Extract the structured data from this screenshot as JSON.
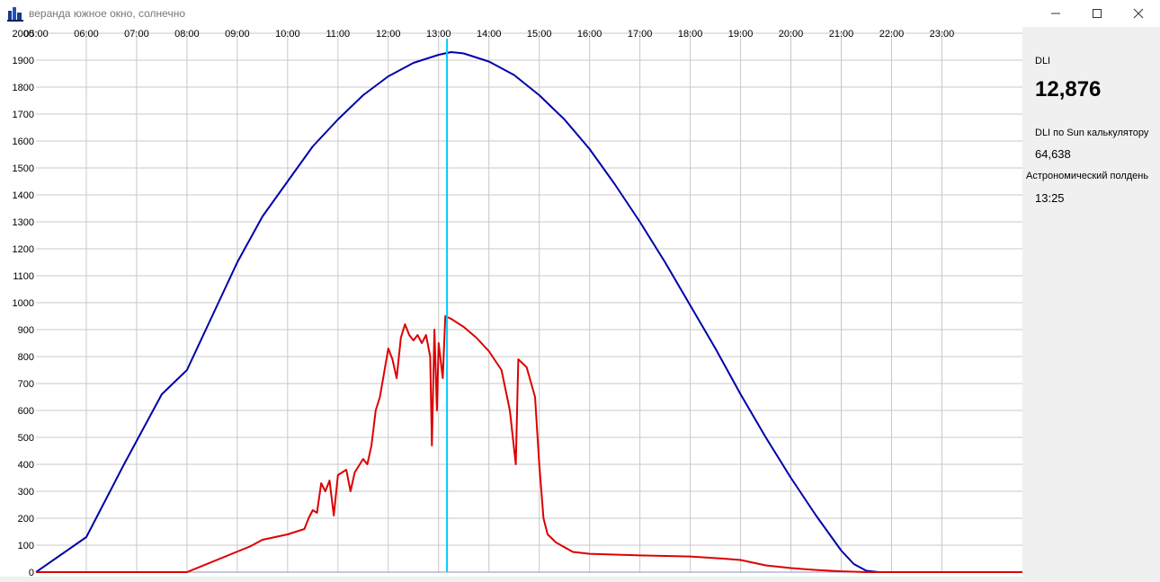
{
  "window": {
    "title": "веранда южное окно, солнечно",
    "icon": "app-icon"
  },
  "side_panel": {
    "dli_label": "DLI",
    "dli_value": "12,876",
    "calc_label": "DLI по Sun калькулятору",
    "calc_value": "64,638",
    "noon_label": "Астрономический полдень",
    "noon_value": "13:25"
  },
  "colors": {
    "theoretical": "#0000aa",
    "measured": "#dd0000",
    "cursor": "#00ccff",
    "grid": "#c8c8c8"
  },
  "chart_data": {
    "type": "line",
    "x_ticks": [
      "05:00",
      "06:00",
      "07:00",
      "08:00",
      "09:00",
      "10:00",
      "11:00",
      "12:00",
      "13:00",
      "14:00",
      "15:00",
      "16:00",
      "17:00",
      "18:00",
      "19:00",
      "20:00",
      "21:00",
      "22:00",
      "23:00"
    ],
    "y_ticks": [
      0,
      100,
      200,
      300,
      400,
      500,
      600,
      700,
      800,
      900,
      1000,
      1100,
      1200,
      1300,
      1400,
      1500,
      1600,
      1700,
      1800,
      1900,
      2000
    ],
    "xlim": [
      "05:00",
      "24:36"
    ],
    "ylim": [
      0,
      2000
    ],
    "grid": true,
    "cursor_x": "13:10",
    "series": [
      {
        "color": "#0000aa",
        "points": [
          [
            "05:00",
            0
          ],
          [
            "06:00",
            130
          ],
          [
            "06:45",
            400
          ],
          [
            "07:30",
            660
          ],
          [
            "08:00",
            750
          ],
          [
            "08:30",
            950
          ],
          [
            "09:00",
            1150
          ],
          [
            "09:30",
            1320
          ],
          [
            "10:00",
            1450
          ],
          [
            "10:30",
            1580
          ],
          [
            "11:00",
            1680
          ],
          [
            "11:30",
            1770
          ],
          [
            "12:00",
            1840
          ],
          [
            "12:30",
            1890
          ],
          [
            "13:00",
            1920
          ],
          [
            "13:15",
            1930
          ],
          [
            "13:30",
            1925
          ],
          [
            "14:00",
            1895
          ],
          [
            "14:30",
            1845
          ],
          [
            "15:00",
            1770
          ],
          [
            "15:30",
            1680
          ],
          [
            "16:00",
            1570
          ],
          [
            "16:30",
            1440
          ],
          [
            "17:00",
            1300
          ],
          [
            "17:30",
            1150
          ],
          [
            "18:00",
            990
          ],
          [
            "18:30",
            830
          ],
          [
            "19:00",
            660
          ],
          [
            "19:30",
            500
          ],
          [
            "20:00",
            350
          ],
          [
            "20:30",
            210
          ],
          [
            "21:00",
            80
          ],
          [
            "21:15",
            30
          ],
          [
            "21:30",
            5
          ],
          [
            "21:45",
            0
          ],
          [
            "24:36",
            0
          ]
        ]
      },
      {
        "color": "#dd0000",
        "points": [
          [
            "05:00",
            0
          ],
          [
            "08:00",
            0
          ],
          [
            "09:15",
            95
          ],
          [
            "09:30",
            120
          ],
          [
            "10:00",
            140
          ],
          [
            "10:20",
            160
          ],
          [
            "10:25",
            200
          ],
          [
            "10:30",
            230
          ],
          [
            "10:35",
            220
          ],
          [
            "10:40",
            330
          ],
          [
            "10:45",
            300
          ],
          [
            "10:50",
            340
          ],
          [
            "10:55",
            210
          ],
          [
            "11:00",
            360
          ],
          [
            "11:10",
            380
          ],
          [
            "11:15",
            300
          ],
          [
            "11:20",
            370
          ],
          [
            "11:30",
            420
          ],
          [
            "11:35",
            400
          ],
          [
            "11:40",
            470
          ],
          [
            "11:45",
            600
          ],
          [
            "11:50",
            650
          ],
          [
            "12:00",
            830
          ],
          [
            "12:05",
            790
          ],
          [
            "12:10",
            720
          ],
          [
            "12:15",
            870
          ],
          [
            "12:20",
            920
          ],
          [
            "12:25",
            880
          ],
          [
            "12:30",
            860
          ],
          [
            "12:35",
            880
          ],
          [
            "12:40",
            850
          ],
          [
            "12:45",
            880
          ],
          [
            "12:50",
            800
          ],
          [
            "12:52",
            470
          ],
          [
            "12:55",
            900
          ],
          [
            "12:58",
            600
          ],
          [
            "13:00",
            850
          ],
          [
            "13:05",
            720
          ],
          [
            "13:08",
            950
          ],
          [
            "13:15",
            940
          ],
          [
            "13:30",
            910
          ],
          [
            "13:45",
            870
          ],
          [
            "14:00",
            820
          ],
          [
            "14:15",
            750
          ],
          [
            "14:25",
            600
          ],
          [
            "14:32",
            400
          ],
          [
            "14:35",
            790
          ],
          [
            "14:45",
            760
          ],
          [
            "14:55",
            650
          ],
          [
            "15:00",
            400
          ],
          [
            "15:05",
            200
          ],
          [
            "15:10",
            140
          ],
          [
            "15:20",
            110
          ],
          [
            "15:40",
            75
          ],
          [
            "16:00",
            68
          ],
          [
            "17:00",
            62
          ],
          [
            "18:00",
            58
          ],
          [
            "18:40",
            50
          ],
          [
            "19:00",
            45
          ],
          [
            "19:30",
            25
          ],
          [
            "20:00",
            15
          ],
          [
            "20:30",
            8
          ],
          [
            "21:00",
            3
          ],
          [
            "21:30",
            0
          ],
          [
            "24:36",
            0
          ]
        ]
      }
    ]
  }
}
